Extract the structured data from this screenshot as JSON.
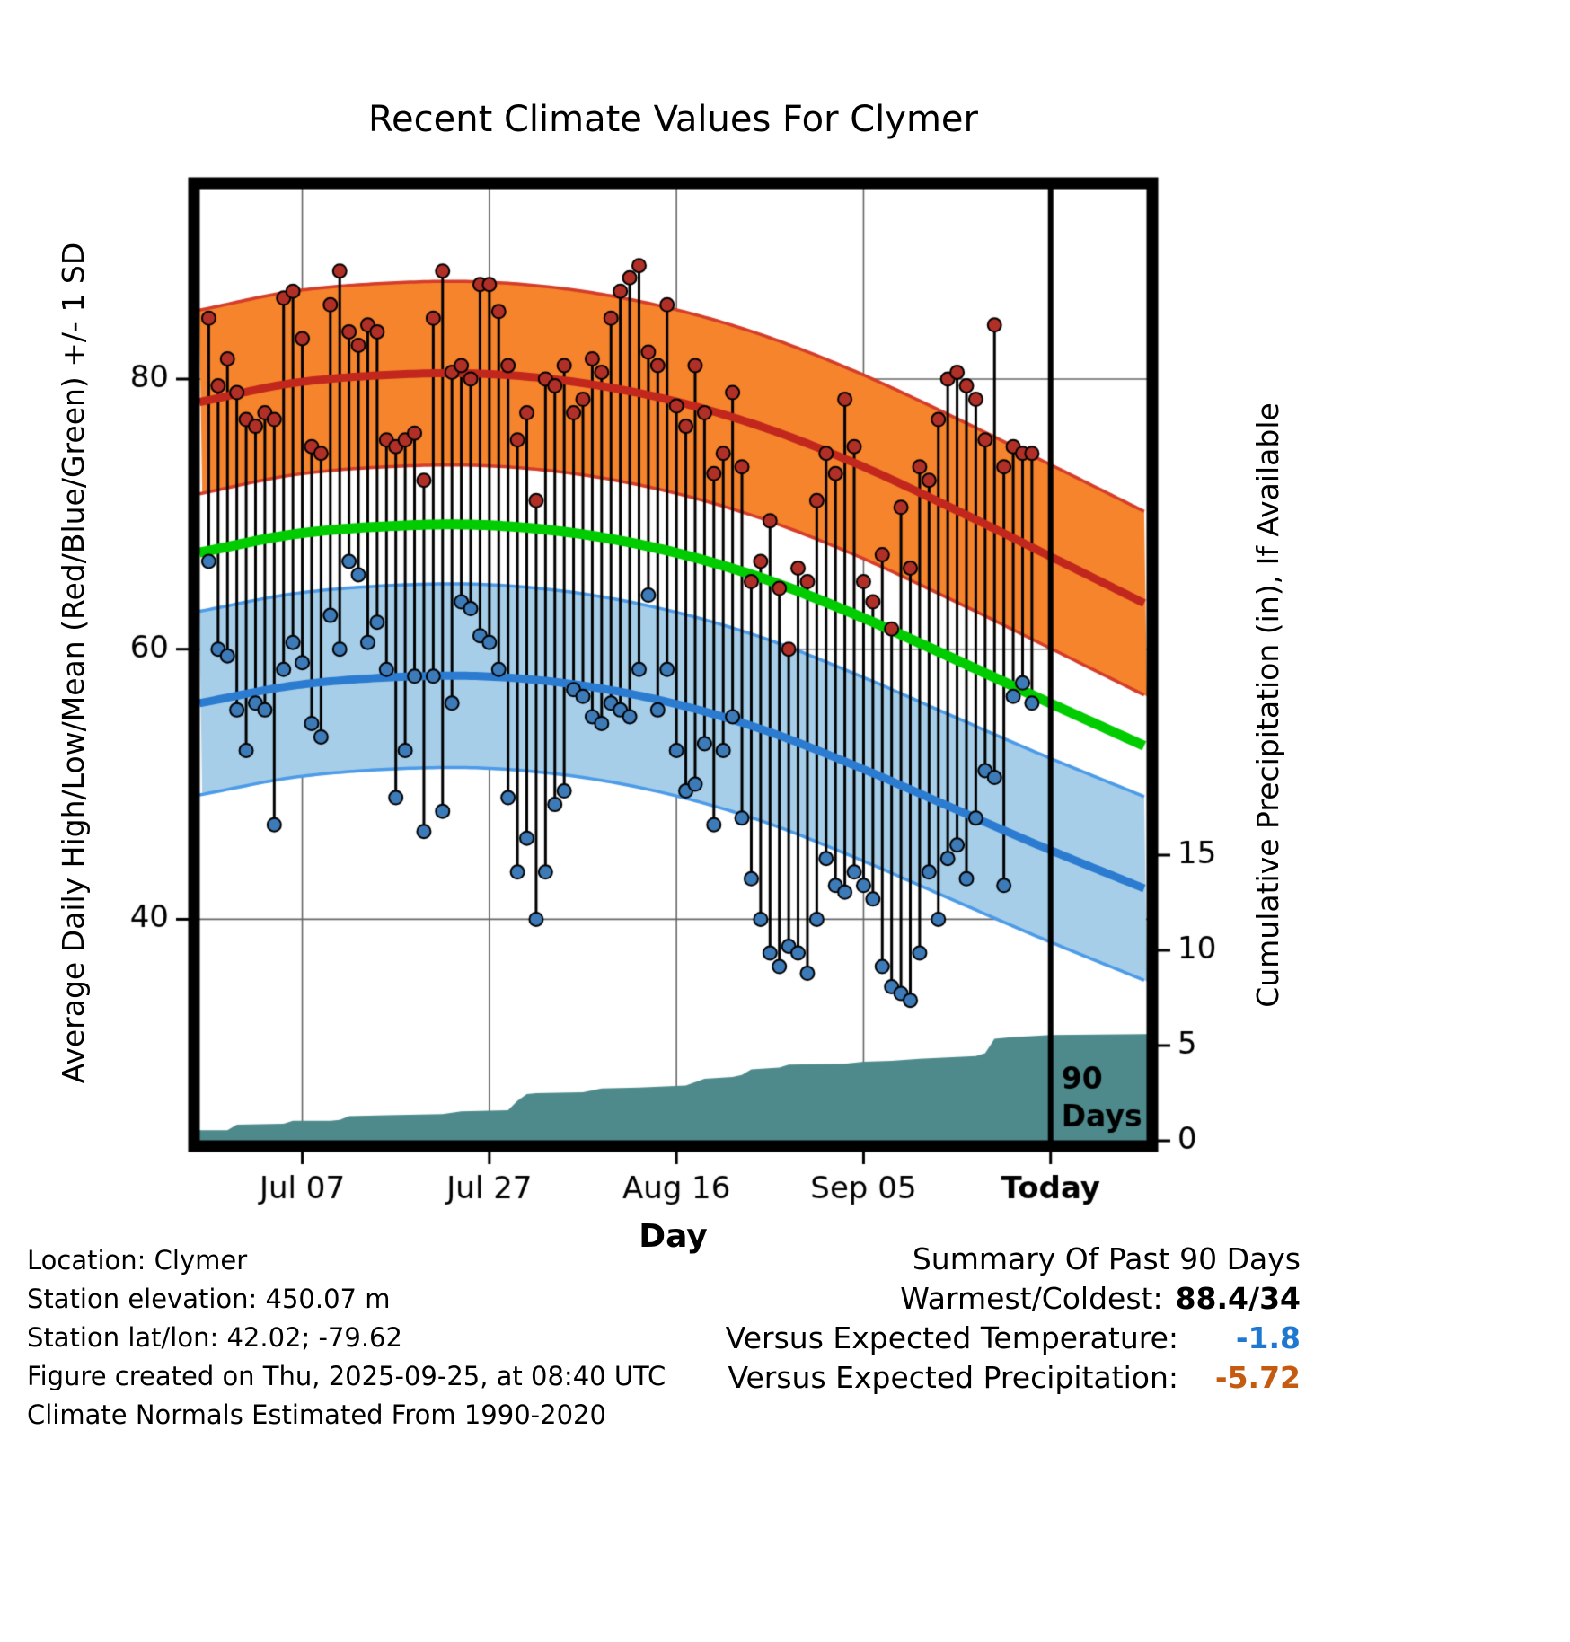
{
  "chart_data": {
    "type": "line",
    "title": "Recent Climate Values For Clymer",
    "xlabel": "Day",
    "ylabel_left": "Average Daily High/Low/Mean (Red/Blue/Green) +/- 1 SD",
    "ylabel_right": "Cumulative Precipitation (in), If Available",
    "x_domain_days": [
      0,
      101.3
    ],
    "x_ticks": [
      {
        "day": 11,
        "label": "Jul 07",
        "bold": false
      },
      {
        "day": 31,
        "label": "Jul 27",
        "bold": false
      },
      {
        "day": 51,
        "label": "Aug 16",
        "bold": false
      },
      {
        "day": 71,
        "label": "Sep 05",
        "bold": false
      },
      {
        "day": 91,
        "label": "Today",
        "bold": true
      }
    ],
    "today_day": 91,
    "ylim_left": [
      23.6,
      94.1
    ],
    "yticks_left": [
      40,
      60,
      80
    ],
    "ylim_right": [
      0,
      50
    ],
    "yticks_right": [
      0,
      5,
      10,
      15
    ],
    "grid": true,
    "legend": "none",
    "annotation": {
      "lines": [
        "90",
        "Days"
      ]
    },
    "climatology": {
      "sd": 6.8,
      "knots": [
        [
          0,
          78.3,
          56.0
        ],
        [
          10,
          79.7,
          57.3
        ],
        [
          20,
          80.3,
          57.9
        ],
        [
          30,
          80.4,
          58.0
        ],
        [
          40,
          79.8,
          57.4
        ],
        [
          50,
          78.5,
          56.1
        ],
        [
          60,
          76.5,
          54.1
        ],
        [
          70,
          73.8,
          51.4
        ],
        [
          80,
          70.6,
          48.4
        ],
        [
          90,
          67.2,
          45.4
        ],
        [
          101.3,
          63.3,
          42.2
        ]
      ]
    },
    "daily_obs": [
      [
        1,
        84.5,
        66.5
      ],
      [
        2,
        79.5,
        60
      ],
      [
        3,
        81.5,
        59.5
      ],
      [
        4,
        79,
        55.5
      ],
      [
        5,
        77,
        52.5
      ],
      [
        6,
        76.5,
        56
      ],
      [
        7,
        77.5,
        55.5
      ],
      [
        8,
        77,
        47
      ],
      [
        9,
        86,
        58.5
      ],
      [
        10,
        86.5,
        60.5
      ],
      [
        11,
        83,
        59
      ],
      [
        12,
        75,
        54.5
      ],
      [
        13,
        74.5,
        53.5
      ],
      [
        14,
        85.5,
        62.5
      ],
      [
        15,
        88,
        60
      ],
      [
        16,
        83.5,
        66.5
      ],
      [
        17,
        82.5,
        65.5
      ],
      [
        18,
        84,
        60.5
      ],
      [
        19,
        83.5,
        62
      ],
      [
        20,
        75.5,
        58.5
      ],
      [
        21,
        75,
        49
      ],
      [
        22,
        75.5,
        52.5
      ],
      [
        23,
        76,
        58
      ],
      [
        24,
        72.5,
        46.5
      ],
      [
        25,
        84.5,
        58
      ],
      [
        26,
        88,
        48
      ],
      [
        27,
        80.5,
        56
      ],
      [
        28,
        81,
        63.5
      ],
      [
        29,
        80,
        63
      ],
      [
        30,
        87,
        61
      ],
      [
        31,
        87,
        60.5
      ],
      [
        32,
        85,
        58.5
      ],
      [
        33,
        81,
        49
      ],
      [
        34,
        75.5,
        43.5
      ],
      [
        35,
        77.5,
        46
      ],
      [
        36,
        71,
        40
      ],
      [
        37,
        80,
        43.5
      ],
      [
        38,
        79.5,
        48.5
      ],
      [
        39,
        81,
        49.5
      ],
      [
        40,
        77.5,
        57
      ],
      [
        41,
        78.5,
        56.5
      ],
      [
        42,
        81.5,
        55
      ],
      [
        43,
        80.5,
        54.5
      ],
      [
        44,
        84.5,
        56
      ],
      [
        45,
        86.5,
        55.5
      ],
      [
        46,
        87.5,
        55
      ],
      [
        47,
        88.4,
        58.5
      ],
      [
        48,
        82,
        64
      ],
      [
        49,
        81,
        55.5
      ],
      [
        50,
        85.5,
        58.5
      ],
      [
        51,
        78,
        52.5
      ],
      [
        52,
        76.5,
        49.5
      ],
      [
        53,
        81,
        50
      ],
      [
        54,
        77.5,
        53
      ],
      [
        55,
        73,
        47
      ],
      [
        56,
        74.5,
        52.5
      ],
      [
        57,
        79,
        55
      ],
      [
        58,
        73.5,
        47.5
      ],
      [
        59,
        65,
        43
      ],
      [
        60,
        66.5,
        40
      ],
      [
        61,
        69.5,
        37.5
      ],
      [
        62,
        64.5,
        36.5
      ],
      [
        63,
        60,
        38
      ],
      [
        64,
        66,
        37.5
      ],
      [
        65,
        65,
        36
      ],
      [
        66,
        71,
        40
      ],
      [
        67,
        74.5,
        44.5
      ],
      [
        68,
        73,
        42.5
      ],
      [
        69,
        78.5,
        42
      ],
      [
        70,
        75,
        43.5
      ],
      [
        71,
        65,
        42.5
      ],
      [
        72,
        63.5,
        41.5
      ],
      [
        73,
        67,
        36.5
      ],
      [
        74,
        61.5,
        35
      ],
      [
        75,
        70.5,
        34.5
      ],
      [
        76,
        66,
        34
      ],
      [
        77,
        73.5,
        37.5
      ],
      [
        78,
        72.5,
        43.5
      ],
      [
        79,
        77,
        40
      ],
      [
        80,
        80,
        44.5
      ],
      [
        81,
        80.5,
        45.5
      ],
      [
        82,
        79.5,
        43
      ],
      [
        83,
        78.5,
        47.5
      ],
      [
        84,
        75.5,
        51
      ],
      [
        85,
        84,
        50.5
      ],
      [
        86,
        73.5,
        42.5
      ],
      [
        87,
        75,
        56.5
      ],
      [
        88,
        74.5,
        57.5
      ],
      [
        89,
        74.5,
        56
      ]
    ],
    "precip_steps": [
      [
        0,
        0.55
      ],
      [
        3,
        0.55
      ],
      [
        4,
        0.85
      ],
      [
        9,
        0.9
      ],
      [
        10,
        1.05
      ],
      [
        14,
        1.05
      ],
      [
        15,
        1.1
      ],
      [
        16,
        1.3
      ],
      [
        20,
        1.35
      ],
      [
        26,
        1.4
      ],
      [
        28,
        1.55
      ],
      [
        33,
        1.6
      ],
      [
        34,
        2.1
      ],
      [
        35,
        2.45
      ],
      [
        36,
        2.5
      ],
      [
        41,
        2.55
      ],
      [
        43,
        2.75
      ],
      [
        47,
        2.8
      ],
      [
        52,
        2.9
      ],
      [
        54,
        3.25
      ],
      [
        57,
        3.35
      ],
      [
        58,
        3.45
      ],
      [
        59,
        3.75
      ],
      [
        62,
        3.85
      ],
      [
        63,
        4.0
      ],
      [
        69,
        4.05
      ],
      [
        71,
        4.15
      ],
      [
        74,
        4.2
      ],
      [
        77,
        4.3
      ],
      [
        81,
        4.4
      ],
      [
        83,
        4.45
      ],
      [
        84,
        4.6
      ],
      [
        85,
        5.35
      ],
      [
        87,
        5.45
      ],
      [
        89,
        5.5
      ],
      [
        91,
        5.55
      ],
      [
        101.3,
        5.6
      ]
    ]
  },
  "colors": {
    "high_band": "#F5842C",
    "high_band_edge": "#D43D2A",
    "high_line": "#C1271D",
    "high_dot": "#B03028",
    "low_band": "#A6CEE9",
    "low_band_edge": "#4C9BE8",
    "low_line": "#2B7BD0",
    "low_dot": "#3D7AB8",
    "mean_line": "#00CC00",
    "stem": "#000000",
    "precip_fill": "#4E8A8C",
    "today_line": "#000000",
    "grid": "#666666",
    "versus_temp_value": "#1E78D2",
    "versus_precip_value": "#C55A11"
  },
  "footer": {
    "lines": [
      "Location: Clymer",
      "Station elevation: 450.07 m",
      "Station lat/lon: 42.02; -79.62",
      "Figure created on Thu, 2025-09-25, at 08:40 UTC",
      "Climate Normals Estimated From 1990-2020"
    ]
  },
  "summary": {
    "title": "Summary Of Past 90 Days",
    "rows": [
      {
        "label": "Warmest/Coldest:",
        "value": "88.4/34"
      },
      {
        "label": "Versus Expected Temperature:",
        "value": "-1.8"
      },
      {
        "label": "Versus Expected Precipitation:",
        "value": "-5.72"
      }
    ]
  }
}
